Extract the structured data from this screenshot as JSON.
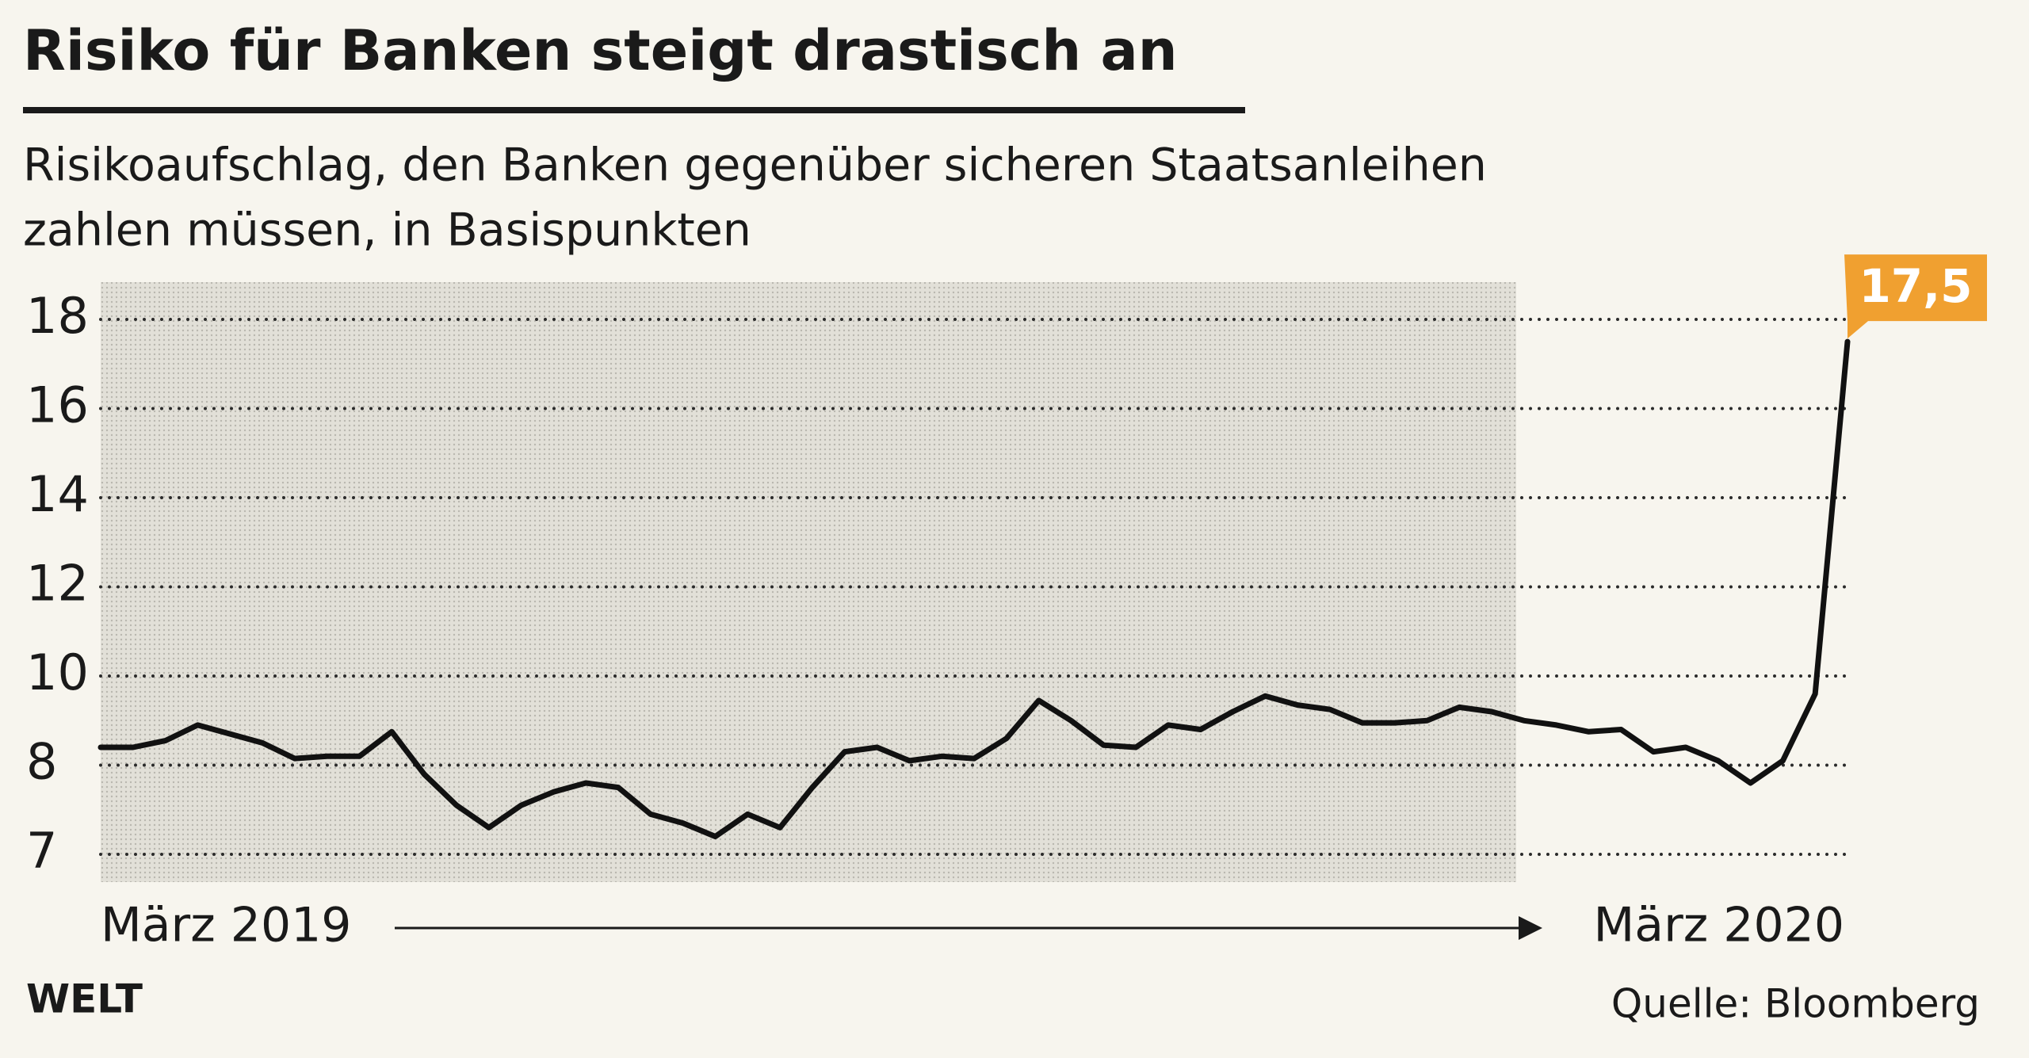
{
  "chart_data": {
    "type": "line",
    "title": "Risiko für Banken steigt drastisch an",
    "subtitle": [
      "Risikoaufschlag, den Banken gegenüber sicheren Staatsanleihen",
      "zahlen müssen, in Basispunkten"
    ],
    "x_labels": [
      "März 2019",
      "März 2020"
    ],
    "series": [
      {
        "color": "#111111",
        "values": [
          8.4,
          8.4,
          8.55,
          8.9,
          8.7,
          8.5,
          8.15,
          8.2,
          8.2,
          8.75,
          7.9,
          7.55,
          7.3,
          7.55,
          7.7,
          7.8,
          7.75,
          7.45,
          7.35,
          7.2,
          7.45,
          7.3,
          7.75,
          8.3,
          8.4,
          8.1,
          8.2,
          8.15,
          8.6,
          9.45,
          9.0,
          8.45,
          8.4,
          8.9,
          8.8,
          9.2,
          9.55,
          9.35,
          9.25,
          8.95,
          8.95,
          9.0,
          9.3,
          9.2,
          9.0,
          8.9,
          8.75,
          8.8,
          8.3,
          8.4,
          8.1,
          7.8,
          8.1,
          9.6,
          17.5
        ]
      }
    ],
    "annotation": "17,5",
    "annotation_color": "#f0a030",
    "ylim": [
      7,
      18
    ],
    "yticks": [
      7,
      8,
      10,
      12,
      14,
      16,
      18
    ],
    "grid": true,
    "brand": "WELT",
    "source": "Quelle: Bloomberg"
  }
}
